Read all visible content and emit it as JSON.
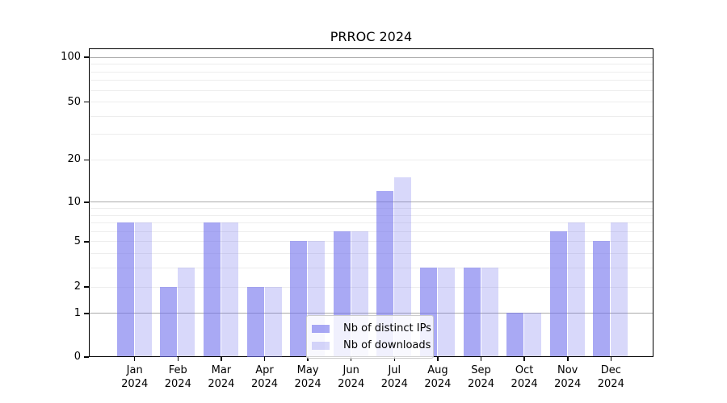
{
  "chart_data": {
    "type": "bar",
    "title": "PRROC 2024",
    "categories": [
      "Jan",
      "Feb",
      "Mar",
      "Apr",
      "May",
      "Jun",
      "Jul",
      "Aug",
      "Sep",
      "Oct",
      "Nov",
      "Dec"
    ],
    "year_label": "2024",
    "series": [
      {
        "name": "Nb of distinct IPs",
        "color": "rgba(112,112,237,0.6)",
        "values": [
          7,
          2,
          7,
          2,
          5,
          6,
          12,
          3,
          3,
          1,
          6,
          5
        ]
      },
      {
        "name": "Nb of downloads",
        "color": "rgba(112,112,237,0.27)",
        "values": [
          7,
          3,
          7,
          2,
          5,
          6,
          15,
          3,
          3,
          1,
          7,
          7
        ]
      }
    ],
    "y_axis": {
      "scale": "log1p",
      "range": [
        0,
        100
      ],
      "tick_values": [
        0,
        1,
        2,
        5,
        10,
        20,
        50,
        100
      ],
      "tick_labels": [
        "0",
        "1",
        "2",
        "5",
        "10",
        "20",
        "50",
        "100"
      ],
      "major_grid_values": [
        1,
        10,
        100
      ],
      "minor_grid_values": [
        2,
        3,
        4,
        5,
        6,
        7,
        8,
        9,
        20,
        30,
        40,
        50,
        60,
        70,
        80,
        90
      ]
    },
    "legend": {
      "labels": [
        "Nb of distinct IPs",
        "Nb of downloads"
      ],
      "position": "lower-center"
    },
    "colors": {
      "major_grid": "#ababab",
      "minor_grid": "#ededed",
      "axis": "#000000"
    },
    "grid": true
  }
}
